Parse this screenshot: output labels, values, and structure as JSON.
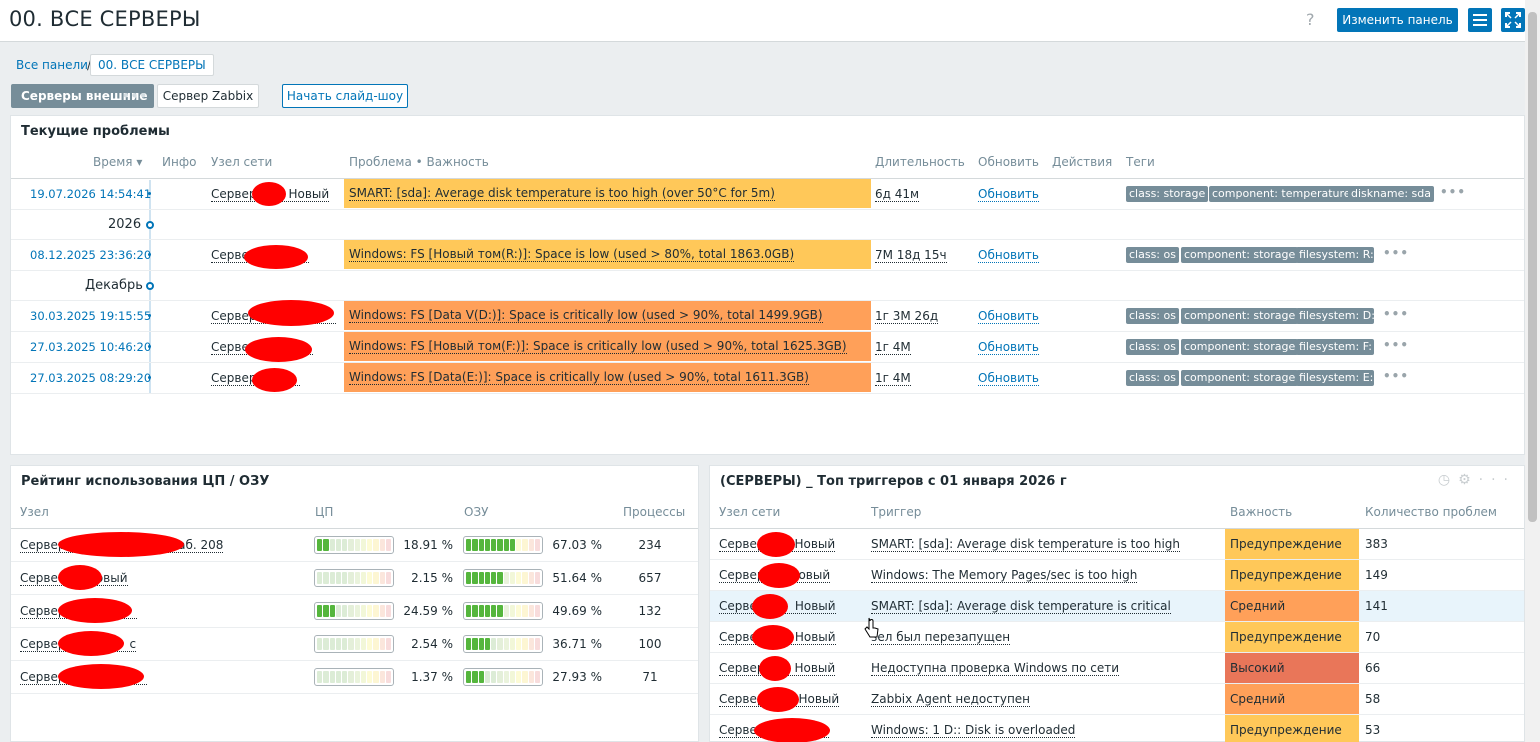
{
  "header": {
    "title": "00. ВСЕ СЕРВЕРЫ",
    "help": "?",
    "edit_button": "Изменить панель",
    "menu_icon": "menu-icon",
    "fullscreen_icon": "fullscreen-icon"
  },
  "breadcrumb": {
    "all": "Все панели",
    "sep": "/",
    "current": "00. ВСЕ СЕРВЕРЫ"
  },
  "tabs": {
    "active": "Серверы внешние",
    "active_dots": "•••",
    "other": "Сервер Zabbix",
    "slideshow": "Начать слайд-шоу"
  },
  "problems": {
    "title": "Текущие проблемы",
    "headers": {
      "time": "Время ▾",
      "info": "Инфо",
      "host": "Узел сети",
      "problem": "Проблема • Важность",
      "duration": "Длительность",
      "update": "Обновить",
      "actions": "Действия",
      "tags": "Теги"
    },
    "separators": [
      "2026",
      "Декабрь"
    ],
    "rows": [
      {
        "time": "19.07.2026 14:54:41",
        "host_a": "Сервер",
        "host_b": "Новый",
        "problem": "SMART: [sda]: Average disk temperature is too high (over 50°C for 5m)",
        "severity": "warning",
        "duration": "6д 41м",
        "update": "Обновить",
        "tags": [
          "class: storage",
          "component: temperature",
          "diskname: sda"
        ]
      },
      {
        "time": "08.12.2025 23:36:20",
        "host_a": "Серве",
        "host_b": "",
        "problem": "Windows: FS [Новый том(R:)]: Space is low (used > 80%, total 1863.0GB)",
        "severity": "warning",
        "duration": "7М 18д 15ч",
        "update": "Обновить",
        "tags": [
          "class: os",
          "component: storage",
          "filesystem: R:"
        ]
      },
      {
        "time": "30.03.2025 19:15:55",
        "host_a": "Сервер",
        "host_b": "",
        "problem": "Windows: FS [Data V(D:)]: Space is critically low (used > 90%, total 1499.9GB)",
        "severity": "average",
        "duration": "1г 3М 26д",
        "update": "Обновить",
        "tags": [
          "class: os",
          "component: storage",
          "filesystem: D:"
        ]
      },
      {
        "time": "27.03.2025 10:46:20",
        "host_a": "Серве",
        "host_b": "",
        "problem": "Windows: FS [Новый том(F:)]: Space is critically low (used > 90%, total 1625.3GB)",
        "severity": "average",
        "duration": "1г 4М",
        "update": "Обновить",
        "tags": [
          "class: os",
          "component: storage",
          "filesystem: F:"
        ]
      },
      {
        "time": "27.03.2025 08:29:20",
        "host_a": "Сервер",
        "host_b": "",
        "problem": "Windows: FS [Data(E:)]: Space is critically low (used > 90%, total 1611.3GB)",
        "severity": "average",
        "duration": "1г 4М",
        "update": "Обновить",
        "tags": [
          "class: os",
          "component: storage",
          "filesystem: E:"
        ]
      }
    ]
  },
  "rating": {
    "title": "Рейтинг использования ЦП / ОЗУ",
    "headers": {
      "host": "Узел",
      "cpu": "ЦП",
      "ram": "ОЗУ",
      "proc": "Процессы"
    },
    "rows": [
      {
        "host_a": "Сервер",
        "host_b": "- Каб. 208",
        "cpu": 18.91,
        "cpu_text": "18.91 %",
        "ram": 67.03,
        "ram_text": "67.03 %",
        "proc": "234"
      },
      {
        "host_a": "Серве",
        "host_b": "овый",
        "cpu": 2.15,
        "cpu_text": "2.15 %",
        "ram": 51.64,
        "ram_text": "51.64 %",
        "proc": "657"
      },
      {
        "host_a": "Сервер",
        "host_b": "",
        "cpu": 24.59,
        "cpu_text": "24.59 %",
        "ram": 49.69,
        "ram_text": "49.69 %",
        "proc": "132"
      },
      {
        "host_a": "Сервер",
        "host_b": "с",
        "cpu": 2.54,
        "cpu_text": "2.54 %",
        "ram": 36.71,
        "ram_text": "36.71 %",
        "proc": "100"
      },
      {
        "host_a": "Сервер",
        "host_b": "",
        "cpu": 1.37,
        "cpu_text": "1.37 %",
        "ram": 27.93,
        "ram_text": "27.93 %",
        "proc": "71"
      }
    ]
  },
  "triggers": {
    "title": "(СЕРВЕРЫ) _ Топ триггеров с 01 января 2026 г",
    "icons": [
      "history-icon",
      "gear-icon",
      "more-icon"
    ],
    "headers": {
      "host": "Узел сети",
      "trigger": "Триггер",
      "severity": "Важность",
      "count": "Количество проблем"
    },
    "rows": [
      {
        "host_a": "Сервер",
        "host_b": "Новый",
        "trigger": "SMART: [sda]: Average disk temperature is too high",
        "severity": "Предупреждение",
        "sev": "warning",
        "count": "383"
      },
      {
        "host_a": "Сервер",
        "host_b": "овый",
        "trigger": "Windows: The Memory Pages/sec is too high",
        "severity": "Предупреждение",
        "sev": "warning",
        "count": "149"
      },
      {
        "host_a": "Серве",
        "host_b": "Новый",
        "trigger": "SMART: [sda]: Average disk temperature is critical",
        "severity": "Средний",
        "sev": "average",
        "count": "141"
      },
      {
        "host_a": "Серве",
        "host_b": "Новый",
        "trigger": "зел был перезапущен",
        "severity": "Предупреждение",
        "sev": "warning",
        "count": "70"
      },
      {
        "host_a": "Сервер",
        "host_b": "Новый",
        "trigger": "Недоступна проверка Windows по сети",
        "severity": "Высокий",
        "sev": "high",
        "count": "66"
      },
      {
        "host_a": "Сервер",
        "host_b": "Новый",
        "trigger": "Zabbix Agent недоступен",
        "severity": "Средний",
        "sev": "average",
        "count": "58"
      },
      {
        "host_a": "Серве",
        "host_b": "",
        "trigger": "Windows: 1 D:: Disk is overloaded",
        "severity": "Предупреждение",
        "sev": "warning",
        "count": "53"
      }
    ]
  },
  "colors": {
    "primary": "#0275b8",
    "warning": "#ffc859",
    "average": "#ffa059",
    "high": "#e97659"
  }
}
